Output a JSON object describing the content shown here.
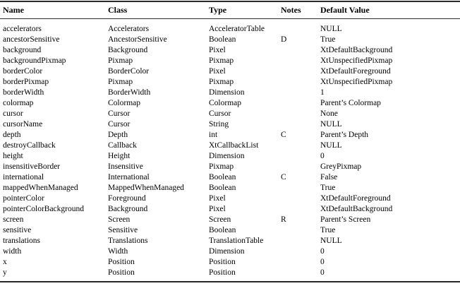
{
  "table": {
    "columns": [
      "Name",
      "Class",
      "Type",
      "Notes",
      "Default Value"
    ],
    "rows": [
      {
        "name": "accelerators",
        "class": "Accelerators",
        "type": "AcceleratorTable",
        "notes": "",
        "default": "NULL"
      },
      {
        "name": "ancestorSensitive",
        "class": "AncestorSensitive",
        "type": "Boolean",
        "notes": "D",
        "default": "True"
      },
      {
        "name": "background",
        "class": "Background",
        "type": "Pixel",
        "notes": "",
        "default": "XtDefaultBackground"
      },
      {
        "name": "backgroundPixmap",
        "class": "Pixmap",
        "type": "Pixmap",
        "notes": "",
        "default": "XtUnspecifiedPixmap"
      },
      {
        "name": "borderColor",
        "class": "BorderColor",
        "type": "Pixel",
        "notes": "",
        "default": "XtDefaultForeground"
      },
      {
        "name": "borderPixmap",
        "class": "Pixmap",
        "type": "Pixmap",
        "notes": "",
        "default": "XtUnspecifiedPixmap"
      },
      {
        "name": "borderWidth",
        "class": "BorderWidth",
        "type": "Dimension",
        "notes": "",
        "default": "1"
      },
      {
        "name": "colormap",
        "class": "Colormap",
        "type": "Colormap",
        "notes": "",
        "default": "Parent’s Colormap"
      },
      {
        "name": "cursor",
        "class": "Cursor",
        "type": "Cursor",
        "notes": "",
        "default": "None"
      },
      {
        "name": "cursorName",
        "class": "Cursor",
        "type": "String",
        "notes": "",
        "default": "NULL"
      },
      {
        "name": "depth",
        "class": "Depth",
        "type": "int",
        "notes": "C",
        "default": "Parent’s Depth"
      },
      {
        "name": "destroyCallback",
        "class": "Callback",
        "type": "XtCallbackList",
        "notes": "",
        "default": "NULL"
      },
      {
        "name": "height",
        "class": "Height",
        "type": "Dimension",
        "notes": "",
        "default": "0"
      },
      {
        "name": "insensitiveBorder",
        "class": "Insensitive",
        "type": "Pixmap",
        "notes": "",
        "default": "GreyPixmap"
      },
      {
        "name": "international",
        "class": "International",
        "type": "Boolean",
        "notes": "C",
        "default": "False"
      },
      {
        "name": "mappedWhenManaged",
        "class": "MappedWhenManaged",
        "type": "Boolean",
        "notes": "",
        "default": "True"
      },
      {
        "name": "pointerColor",
        "class": "Foreground",
        "type": "Pixel",
        "notes": "",
        "default": "XtDefaultForeground"
      },
      {
        "name": "pointerColorBackground",
        "class": "Background",
        "type": "Pixel",
        "notes": "",
        "default": "XtDefaultBackground"
      },
      {
        "name": "screen",
        "class": "Screen",
        "type": "Screen",
        "notes": "R",
        "default": "Parent’s Screen"
      },
      {
        "name": "sensitive",
        "class": "Sensitive",
        "type": "Boolean",
        "notes": "",
        "default": "True"
      },
      {
        "name": "translations",
        "class": "Translations",
        "type": "TranslationTable",
        "notes": "",
        "default": "NULL"
      },
      {
        "name": "width",
        "class": "Width",
        "type": "Dimension",
        "notes": "",
        "default": "0"
      },
      {
        "name": "x",
        "class": "Position",
        "type": "Position",
        "notes": "",
        "default": "0"
      },
      {
        "name": "y",
        "class": "Position",
        "type": "Position",
        "notes": "",
        "default": "0"
      }
    ]
  }
}
